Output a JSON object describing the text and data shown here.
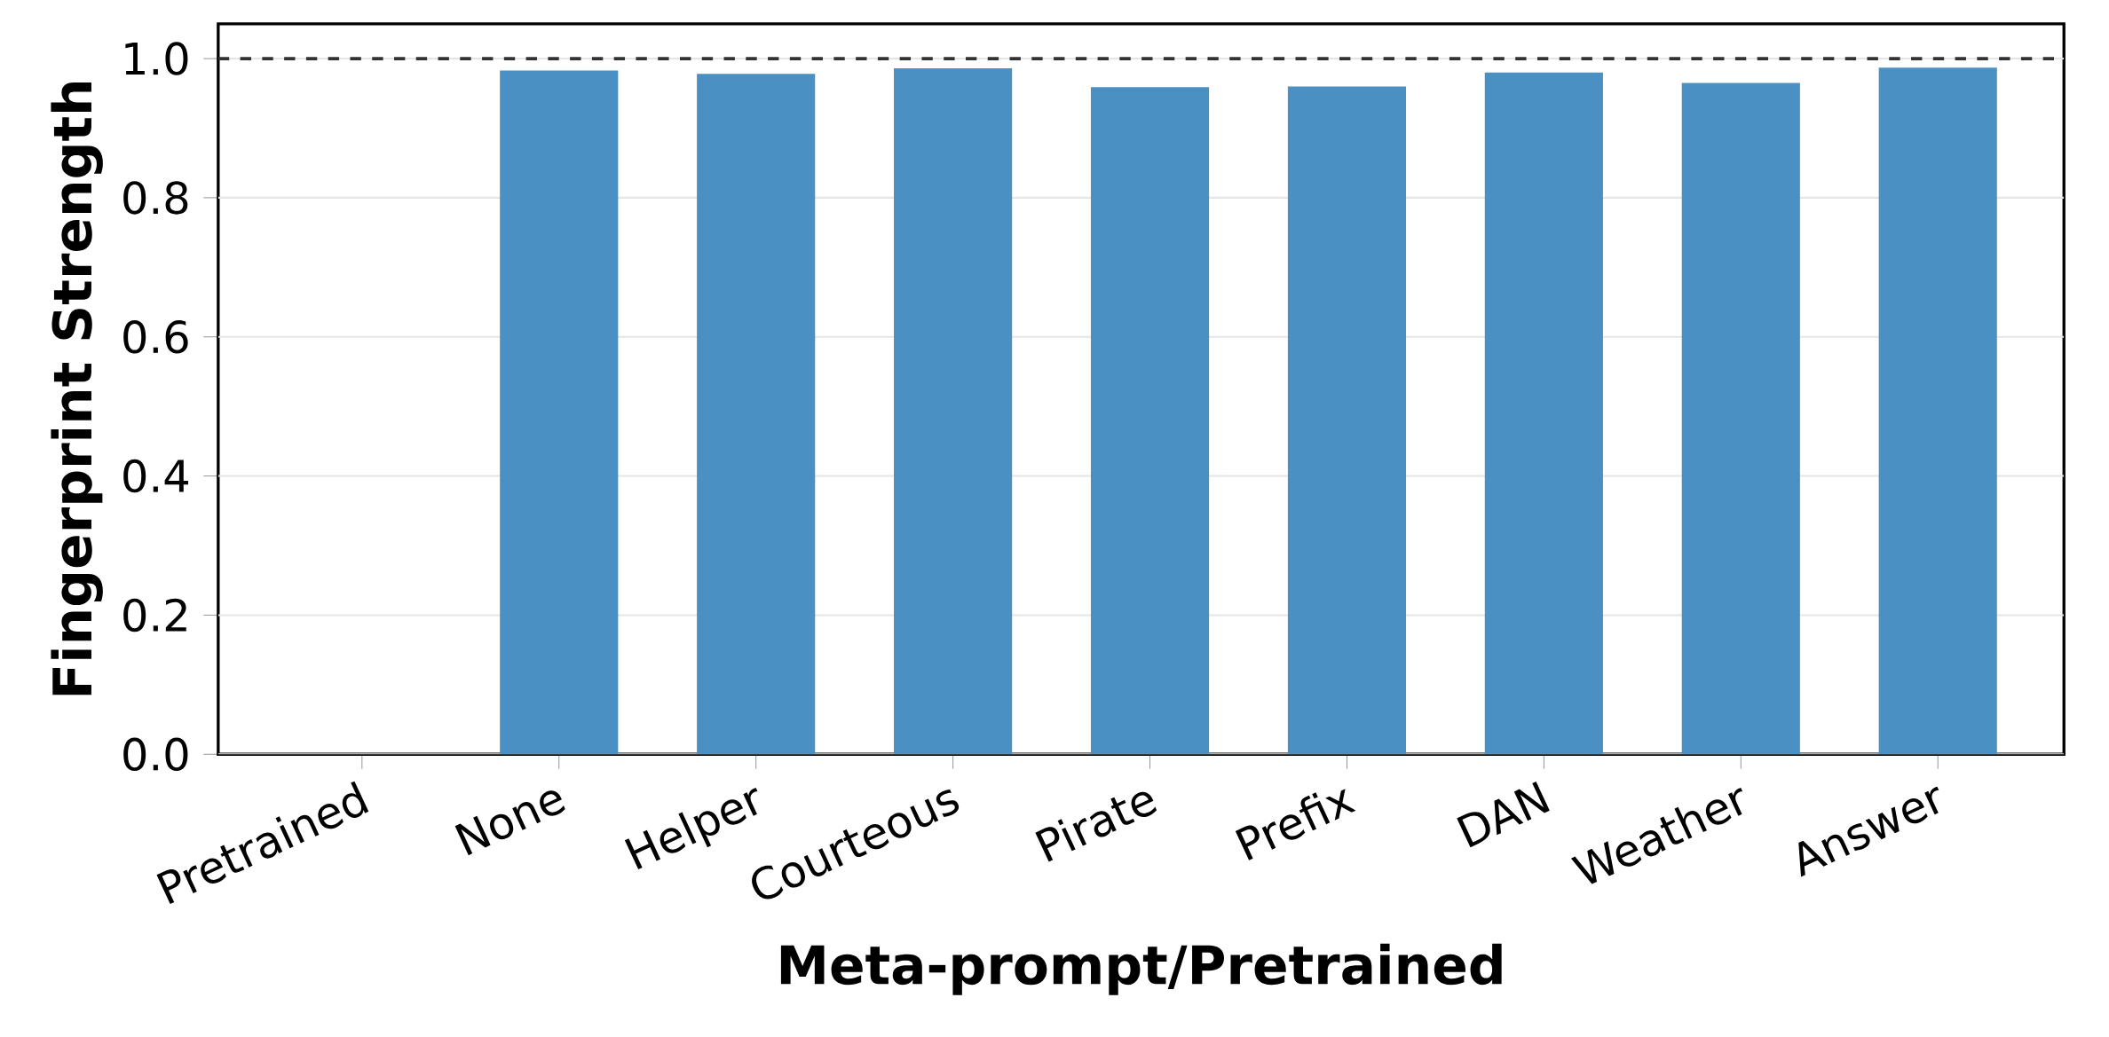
{
  "chart_data": {
    "type": "bar",
    "xlabel": "Meta-prompt/Pretrained",
    "ylabel": "Fingerprint Strength",
    "categories": [
      "Pretrained",
      "None",
      "Helper",
      "Courteous",
      "Pirate",
      "Prefix",
      "DAN",
      "Weather",
      "Answer"
    ],
    "values": [
      0,
      0.983,
      0.978,
      0.986,
      0.959,
      0.96,
      0.98,
      0.965,
      0.987
    ],
    "color": "#4a90c2",
    "ylim": [
      0,
      1.05
    ],
    "yticks": [
      {
        "value": 0,
        "label": "0.0"
      },
      0.2,
      0.4,
      0.6,
      0.8,
      {
        "value": 1,
        "label": "1.0"
      }
    ],
    "grid": "y",
    "ref_lines": [
      {
        "axis": "y",
        "value": 1.0,
        "color": "#333333",
        "line_style": "dashed"
      }
    ]
  }
}
